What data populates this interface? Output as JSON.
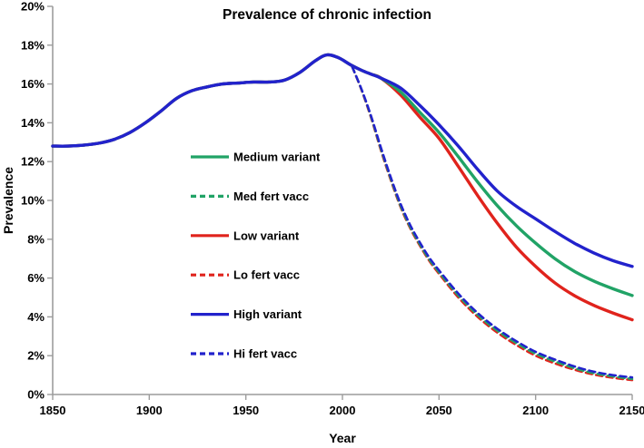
{
  "figure": {
    "title": "Prevalence of chronic infection",
    "x_axis_label": "Year",
    "y_axis_label": "Prevalence"
  },
  "chart_data": {
    "type": "line",
    "title": "Prevalence of chronic infection",
    "xlabel": "Year",
    "ylabel": "Prevalence",
    "xlim": [
      1850,
      2150
    ],
    "ylim_percent": [
      0,
      20
    ],
    "x_ticks": [
      1850,
      1900,
      1950,
      2000,
      2050,
      2100,
      2150
    ],
    "y_ticks_percent": [
      0,
      2,
      4,
      6,
      8,
      10,
      12,
      14,
      16,
      18,
      20
    ],
    "y_tick_suffix": "%",
    "grid": false,
    "legend_position": "inside-left",
    "colors": {
      "blue": "#2222CC",
      "green": "#21A366",
      "red": "#E0231C",
      "axis": "#9C9C9C",
      "text": "#000000"
    },
    "history_points_percent": [
      [
        1850,
        12.8
      ],
      [
        1858,
        12.8
      ],
      [
        1866,
        12.85
      ],
      [
        1874,
        12.95
      ],
      [
        1882,
        13.15
      ],
      [
        1890,
        13.5
      ],
      [
        1898,
        14.0
      ],
      [
        1906,
        14.6
      ],
      [
        1914,
        15.25
      ],
      [
        1922,
        15.65
      ],
      [
        1930,
        15.85
      ],
      [
        1938,
        16.0
      ],
      [
        1946,
        16.05
      ],
      [
        1954,
        16.1
      ],
      [
        1962,
        16.1
      ],
      [
        1970,
        16.2
      ],
      [
        1978,
        16.6
      ],
      [
        1986,
        17.2
      ],
      [
        1992,
        17.5
      ],
      [
        1998,
        17.35
      ],
      [
        2004,
        17.0
      ],
      [
        2010,
        16.7
      ],
      [
        2015,
        16.5
      ],
      [
        2020,
        16.3
      ]
    ],
    "series": [
      {
        "name": "Medium variant",
        "color_key": "green",
        "style": "solid",
        "include_history": true,
        "points_percent": [
          [
            2030,
            15.6
          ],
          [
            2040,
            14.55
          ],
          [
            2050,
            13.5
          ],
          [
            2060,
            12.25
          ],
          [
            2070,
            10.95
          ],
          [
            2080,
            9.75
          ],
          [
            2090,
            8.7
          ],
          [
            2100,
            7.8
          ],
          [
            2110,
            7.0
          ],
          [
            2120,
            6.35
          ],
          [
            2130,
            5.85
          ],
          [
            2140,
            5.45
          ],
          [
            2150,
            5.1
          ]
        ]
      },
      {
        "name": "Med fert vacc",
        "color_key": "green",
        "style": "dashed",
        "include_history": false,
        "points_percent": [
          [
            2005,
            16.9
          ],
          [
            2010,
            15.68
          ],
          [
            2015,
            14.25
          ],
          [
            2020,
            12.62
          ],
          [
            2025,
            11.12
          ],
          [
            2030,
            9.75
          ],
          [
            2035,
            8.65
          ],
          [
            2040,
            7.75
          ],
          [
            2045,
            6.95
          ],
          [
            2050,
            6.3
          ],
          [
            2060,
            5.1
          ],
          [
            2070,
            4.1
          ],
          [
            2080,
            3.3
          ],
          [
            2090,
            2.65
          ],
          [
            2100,
            2.1
          ],
          [
            2110,
            1.7
          ],
          [
            2120,
            1.36
          ],
          [
            2130,
            1.1
          ],
          [
            2140,
            0.93
          ],
          [
            2150,
            0.8
          ]
        ]
      },
      {
        "name": "Low variant",
        "color_key": "red",
        "style": "solid",
        "include_history": true,
        "points_percent": [
          [
            2030,
            15.45
          ],
          [
            2040,
            14.3
          ],
          [
            2050,
            13.2
          ],
          [
            2060,
            11.75
          ],
          [
            2070,
            10.25
          ],
          [
            2080,
            8.85
          ],
          [
            2090,
            7.6
          ],
          [
            2100,
            6.6
          ],
          [
            2110,
            5.75
          ],
          [
            2120,
            5.1
          ],
          [
            2130,
            4.6
          ],
          [
            2140,
            4.2
          ],
          [
            2150,
            3.85
          ]
        ]
      },
      {
        "name": "Lo fert vacc",
        "color_key": "red",
        "style": "dashed",
        "include_history": false,
        "points_percent": [
          [
            2005,
            16.9
          ],
          [
            2010,
            15.65
          ],
          [
            2015,
            14.2
          ],
          [
            2020,
            12.55
          ],
          [
            2025,
            11.05
          ],
          [
            2030,
            9.68
          ],
          [
            2035,
            8.58
          ],
          [
            2040,
            7.68
          ],
          [
            2045,
            6.88
          ],
          [
            2050,
            6.22
          ],
          [
            2060,
            5.0
          ],
          [
            2070,
            4.0
          ],
          [
            2080,
            3.2
          ],
          [
            2090,
            2.55
          ],
          [
            2100,
            2.0
          ],
          [
            2110,
            1.6
          ],
          [
            2120,
            1.28
          ],
          [
            2130,
            1.03
          ],
          [
            2140,
            0.86
          ],
          [
            2150,
            0.74
          ]
        ]
      },
      {
        "name": "High variant",
        "color_key": "blue",
        "style": "solid",
        "include_history": true,
        "points_percent": [
          [
            2030,
            15.8
          ],
          [
            2040,
            14.9
          ],
          [
            2050,
            13.9
          ],
          [
            2060,
            12.8
          ],
          [
            2070,
            11.6
          ],
          [
            2080,
            10.5
          ],
          [
            2090,
            9.7
          ],
          [
            2100,
            9.05
          ],
          [
            2110,
            8.4
          ],
          [
            2120,
            7.8
          ],
          [
            2130,
            7.3
          ],
          [
            2140,
            6.9
          ],
          [
            2150,
            6.6
          ]
        ]
      },
      {
        "name": "Hi fert vacc",
        "color_key": "blue",
        "style": "dashed",
        "include_history": false,
        "points_percent": [
          [
            2005,
            16.9
          ],
          [
            2010,
            15.7
          ],
          [
            2015,
            14.3
          ],
          [
            2020,
            12.7
          ],
          [
            2025,
            11.2
          ],
          [
            2030,
            9.85
          ],
          [
            2035,
            8.75
          ],
          [
            2040,
            7.85
          ],
          [
            2045,
            7.05
          ],
          [
            2050,
            6.4
          ],
          [
            2060,
            5.2
          ],
          [
            2070,
            4.2
          ],
          [
            2080,
            3.4
          ],
          [
            2090,
            2.75
          ],
          [
            2100,
            2.2
          ],
          [
            2110,
            1.8
          ],
          [
            2120,
            1.45
          ],
          [
            2130,
            1.18
          ],
          [
            2140,
            1.0
          ],
          [
            2150,
            0.88
          ]
        ]
      }
    ],
    "draw_order": [
      2,
      0,
      4,
      3,
      1,
      5
    ]
  }
}
